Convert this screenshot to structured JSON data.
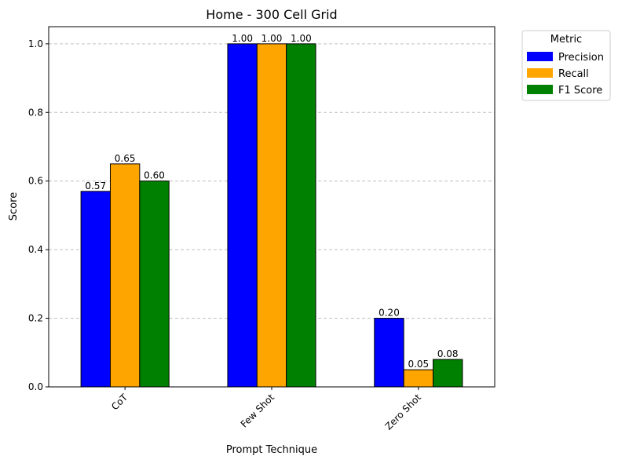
{
  "chart_data": {
    "type": "bar",
    "title": "Home - 300 Cell Grid",
    "xlabel": "Prompt Technique",
    "ylabel": "Score",
    "categories": [
      "CoT",
      "Few Shot",
      "Zero Shot"
    ],
    "series": [
      {
        "name": "Precision",
        "color": "#0000ff",
        "values": [
          0.57,
          1.0,
          0.2
        ],
        "labels": [
          "0.57",
          "1.00",
          "0.20"
        ]
      },
      {
        "name": "Recall",
        "color": "#ffa500",
        "values": [
          0.65,
          1.0,
          0.05
        ],
        "labels": [
          "0.65",
          "1.00",
          "0.05"
        ]
      },
      {
        "name": "F1 Score",
        "color": "#008000",
        "values": [
          0.6,
          1.0,
          0.08
        ],
        "labels": [
          "0.60",
          "1.00",
          "0.08"
        ]
      }
    ],
    "ylim": [
      0,
      1.05
    ],
    "yticks": [
      "0.0",
      "0.2",
      "0.4",
      "0.6",
      "0.8",
      "1.0"
    ],
    "grid": "y-dashed",
    "legend": {
      "title": "Metric",
      "placement": "outside-top-right"
    }
  }
}
